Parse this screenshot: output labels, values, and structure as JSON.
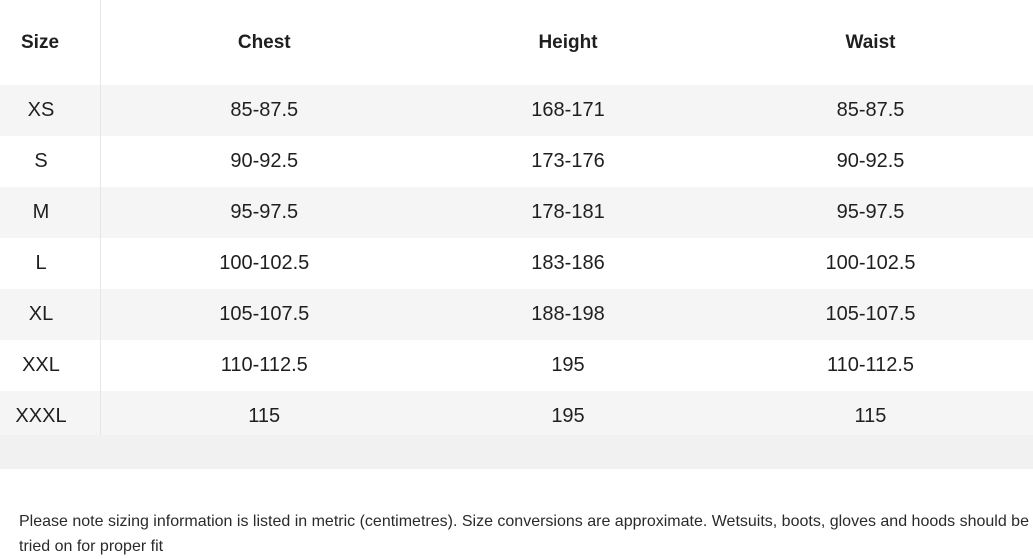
{
  "table": {
    "headers": {
      "size": "Size",
      "chest": "Chest",
      "height": "Height",
      "waist": "Waist"
    },
    "rows": [
      {
        "size": "XS",
        "chest": "85-87.5",
        "height": "168-171",
        "waist": "85-87.5"
      },
      {
        "size": "S",
        "chest": "90-92.5",
        "height": "173-176",
        "waist": "90-92.5"
      },
      {
        "size": "M",
        "chest": "95-97.5",
        "height": "178-181",
        "waist": "95-97.5"
      },
      {
        "size": "L",
        "chest": "100-102.5",
        "height": "183-186",
        "waist": "100-102.5"
      },
      {
        "size": "XL",
        "chest": "105-107.5",
        "height": "188-198",
        "waist": "105-107.5"
      },
      {
        "size": "XXL",
        "chest": "110-112.5",
        "height": "195",
        "waist": "110-112.5"
      },
      {
        "size": "XXXL",
        "chest": "115",
        "height": "195",
        "waist": "115"
      }
    ]
  },
  "note": "Please note sizing information is listed in metric (centimetres). Size conversions are approximate. Wetsuits, boots, gloves and hoods should be tried on for proper fit",
  "colors": {
    "row_stripe": "#f5f5f5",
    "footer_band": "#f1f1f1",
    "divider": "#e6e6e6"
  }
}
